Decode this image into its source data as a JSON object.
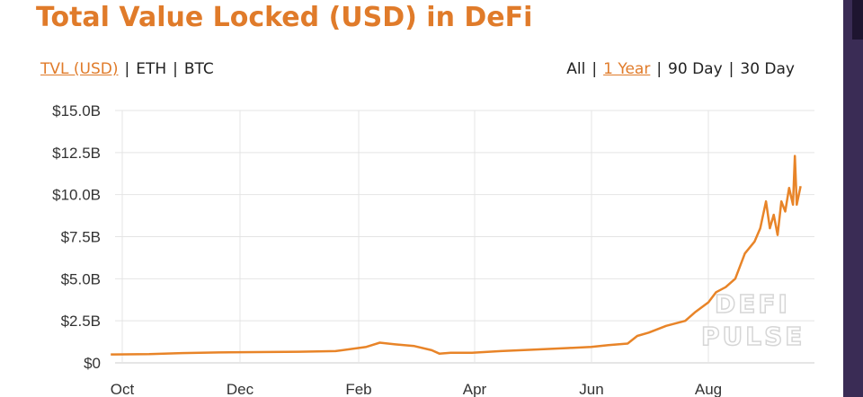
{
  "header": {
    "title": "Total Value Locked (USD) in DeFi"
  },
  "units_selector": {
    "options": [
      "TVL (USD)",
      "ETH",
      "BTC"
    ],
    "active": "TVL (USD)"
  },
  "range_selector": {
    "options": [
      "All",
      "1 Year",
      "90 Day",
      "30 Day"
    ],
    "active": "1 Year"
  },
  "watermark": {
    "line1": "DEFI",
    "line2": "PULSE"
  },
  "colors": {
    "accent": "#e07b2a",
    "line": "#e88428"
  },
  "chart_data": {
    "type": "line",
    "title": "Total Value Locked (USD) in DeFi",
    "xlabel": "",
    "ylabel": "",
    "grid": true,
    "x_ticks": [
      "Oct",
      "Dec",
      "Feb",
      "Apr",
      "Jun",
      "Aug"
    ],
    "y_ticks": [
      "$0",
      "$2.5B",
      "$5.0B",
      "$7.5B",
      "$10.0B",
      "$12.5B",
      "$15.0B"
    ],
    "ylim": [
      0,
      15
    ],
    "y_unit": "billion USD",
    "series": [
      {
        "name": "",
        "x": [
          "2019-09-25",
          "2019-10-15",
          "2019-11-01",
          "2019-11-20",
          "2019-12-10",
          "2020-01-01",
          "2020-01-20",
          "2020-02-05",
          "2020-02-12",
          "2020-02-20",
          "2020-03-01",
          "2020-03-10",
          "2020-03-14",
          "2020-03-20",
          "2020-03-31",
          "2020-04-15",
          "2020-05-01",
          "2020-05-20",
          "2020-06-01",
          "2020-06-10",
          "2020-06-15",
          "2020-06-20",
          "2020-06-25",
          "2020-07-01",
          "2020-07-10",
          "2020-07-20",
          "2020-07-25",
          "2020-08-01",
          "2020-08-05",
          "2020-08-10",
          "2020-08-15",
          "2020-08-20",
          "2020-08-25",
          "2020-08-28",
          "2020-08-31",
          "2020-09-02",
          "2020-09-04",
          "2020-09-06",
          "2020-09-08",
          "2020-09-10",
          "2020-09-12",
          "2020-09-14",
          "2020-09-15",
          "2020-09-16",
          "2020-09-18"
        ],
        "y": [
          0.5,
          0.52,
          0.58,
          0.62,
          0.64,
          0.66,
          0.7,
          0.95,
          1.2,
          1.1,
          1.0,
          0.75,
          0.55,
          0.6,
          0.6,
          0.7,
          0.78,
          0.88,
          0.95,
          1.05,
          1.1,
          1.15,
          1.6,
          1.8,
          2.2,
          2.5,
          3.0,
          3.6,
          4.2,
          4.5,
          5.0,
          6.5,
          7.2,
          8.0,
          9.6,
          8.0,
          8.8,
          7.6,
          9.6,
          9.0,
          10.4,
          9.4,
          12.3,
          9.4,
          10.5
        ]
      }
    ]
  }
}
